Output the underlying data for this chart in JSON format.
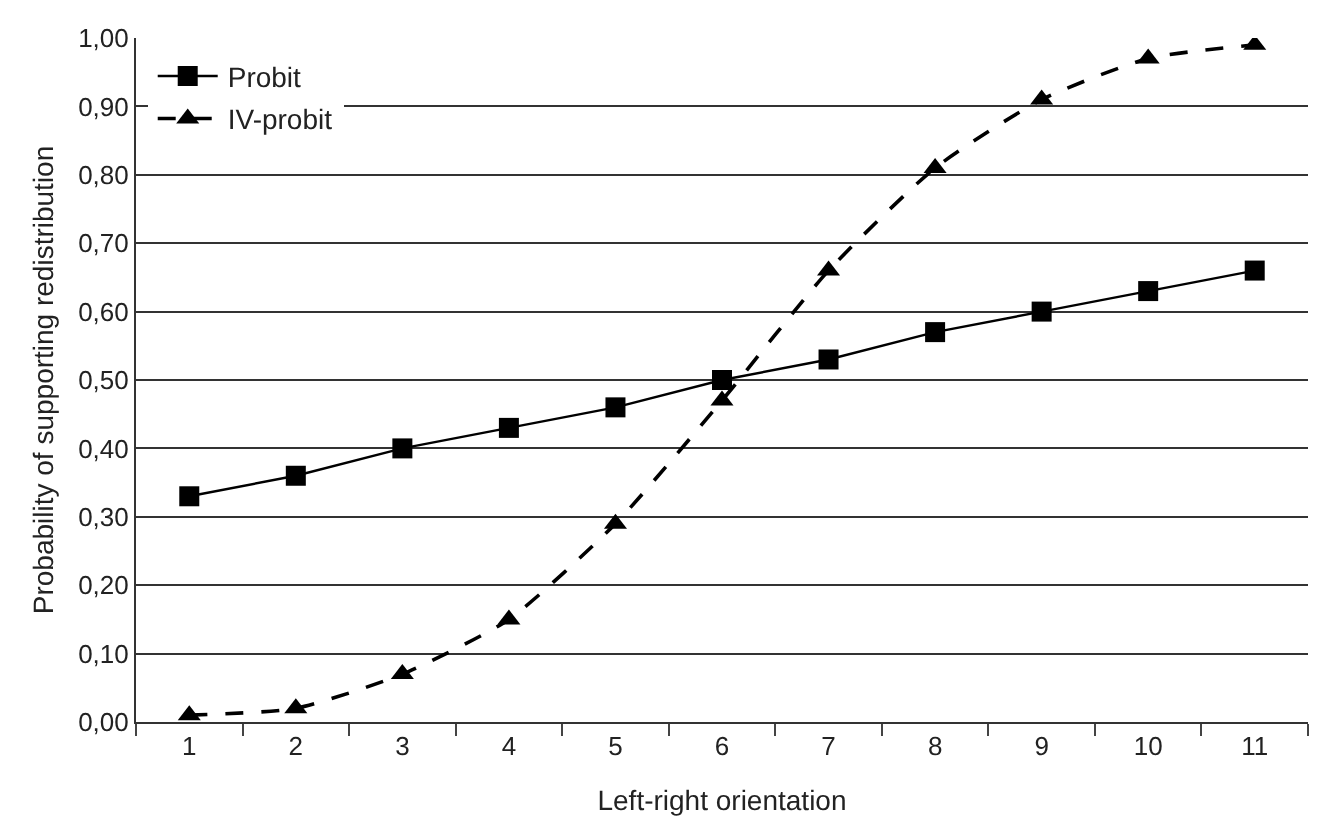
{
  "chart_data": {
    "type": "line",
    "xlabel": "Left-right orientation",
    "ylabel": "Probability of supporting redistribution",
    "categories": [
      "1",
      "2",
      "3",
      "4",
      "5",
      "6",
      "7",
      "8",
      "9",
      "10",
      "11"
    ],
    "series": [
      {
        "name": "Probit",
        "color": "#000000",
        "marker": "square",
        "line_style": "solid",
        "values": [
          0.33,
          0.36,
          0.4,
          0.43,
          0.46,
          0.5,
          0.53,
          0.57,
          0.6,
          0.63,
          0.66
        ]
      },
      {
        "name": "IV-probit",
        "color": "#000000",
        "marker": "triangle",
        "line_style": "dashed",
        "values": [
          0.01,
          0.02,
          0.07,
          0.15,
          0.29,
          0.47,
          0.66,
          0.81,
          0.91,
          0.97,
          0.99
        ]
      }
    ],
    "ylim": [
      0,
      1
    ],
    "yticks": [
      {
        "value": 0,
        "label": "0,00"
      },
      {
        "value": 0.1,
        "label": "0,10"
      },
      {
        "value": 0.2,
        "label": "0,20"
      },
      {
        "value": 0.3,
        "label": "0,30"
      },
      {
        "value": 0.4,
        "label": "0,40"
      },
      {
        "value": 0.5,
        "label": "0,50"
      },
      {
        "value": 0.6,
        "label": "0,60"
      },
      {
        "value": 0.7,
        "label": "0,70"
      },
      {
        "value": 0.8,
        "label": "0,80"
      },
      {
        "value": 0.9,
        "label": "0,90"
      },
      {
        "value": 1,
        "label": "1,00"
      }
    ],
    "grid": "y",
    "legend": "top left"
  }
}
